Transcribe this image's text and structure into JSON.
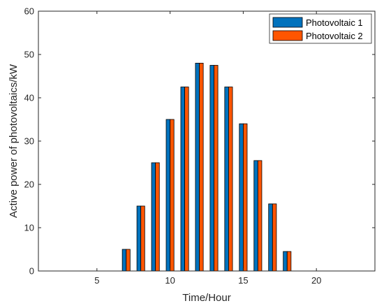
{
  "chart_data": {
    "type": "bar",
    "xlabel": "Time/Hour",
    "ylabel": "Active power of photovoltaics/kW",
    "xlim": [
      1,
      24
    ],
    "ylim": [
      0,
      60
    ],
    "xticks": [
      5,
      10,
      15,
      20
    ],
    "yticks": [
      0,
      10,
      20,
      30,
      40,
      50,
      60
    ],
    "grid": false,
    "legend_position": "top-right",
    "x": [
      7,
      8,
      9,
      10,
      11,
      12,
      13,
      14,
      15,
      16,
      17,
      18
    ],
    "series": [
      {
        "name": "Photovoltaic 1",
        "color": "#0072BD",
        "values": [
          5,
          15,
          25,
          35,
          42.5,
          48,
          47.5,
          42.5,
          34,
          25.5,
          15.5,
          4.5
        ]
      },
      {
        "name": "Photovoltaic 2",
        "color": "#FF5500",
        "values": [
          5,
          15,
          25,
          35,
          42.5,
          48,
          47.5,
          42.5,
          34,
          25.5,
          15.5,
          4.5
        ]
      }
    ]
  }
}
